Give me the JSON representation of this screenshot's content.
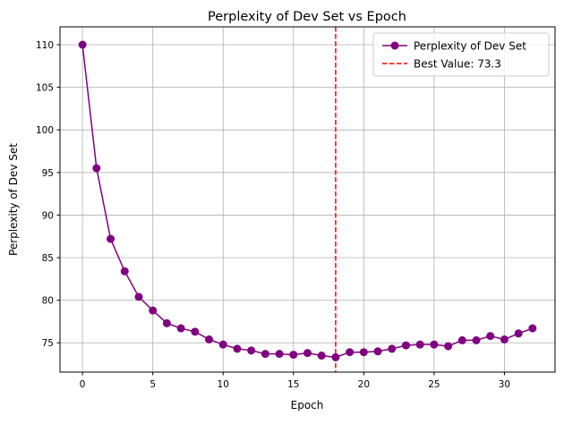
{
  "chart_data": {
    "type": "line",
    "title": "Perplexity of Dev Set vs Epoch",
    "xlabel": "Epoch",
    "ylabel": "Perplexity of Dev Set",
    "xlim": [
      -1.6,
      33.6
    ],
    "ylim": [
      71.56,
      112.1
    ],
    "xticks": [
      0,
      5,
      10,
      15,
      20,
      25,
      30
    ],
    "yticks": [
      75,
      80,
      85,
      90,
      95,
      100,
      105,
      110
    ],
    "grid": true,
    "legend_position": "top-right",
    "series": [
      {
        "name": "Perplexity of Dev Set",
        "color": "#800080",
        "marker": "circle",
        "x": [
          0,
          1,
          2,
          3,
          4,
          5,
          6,
          7,
          8,
          9,
          10,
          11,
          12,
          13,
          14,
          15,
          16,
          17,
          18,
          19,
          20,
          21,
          22,
          23,
          24,
          25,
          26,
          27,
          28,
          29,
          30,
          31,
          32
        ],
        "y": [
          110.0,
          95.5,
          87.2,
          83.4,
          80.4,
          78.8,
          77.3,
          76.7,
          76.3,
          75.4,
          74.8,
          74.3,
          74.1,
          73.7,
          73.7,
          73.6,
          73.8,
          73.5,
          73.3,
          73.9,
          73.9,
          74.0,
          74.3,
          74.7,
          74.8,
          74.8,
          74.6,
          75.3,
          75.3,
          75.8,
          75.4,
          76.1,
          76.7
        ]
      }
    ],
    "vline": {
      "x": 18,
      "label": "Best Value: 73.3",
      "color": "#ff0000",
      "style": "dashed"
    }
  }
}
